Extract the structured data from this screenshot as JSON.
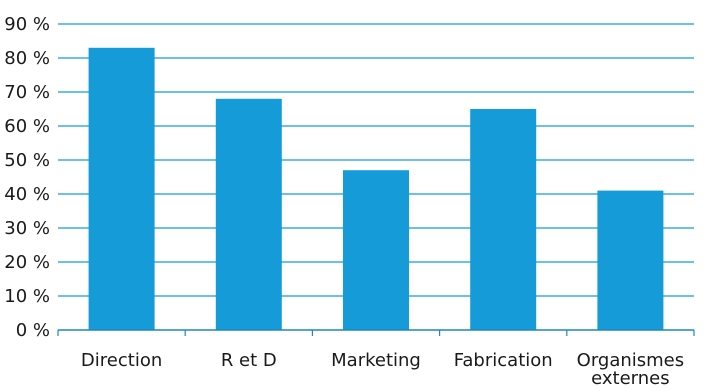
{
  "chart_data": {
    "type": "bar",
    "title": "",
    "xlabel": "",
    "ylabel": "",
    "categories": [
      [
        "Direction"
      ],
      [
        "R et D"
      ],
      [
        "Marketing"
      ],
      [
        "Fabrication"
      ],
      [
        "Organismes",
        "externes"
      ]
    ],
    "values": [
      83,
      68,
      47,
      65,
      41
    ],
    "ylim": [
      0,
      90
    ],
    "yticks": [
      0,
      10,
      20,
      30,
      40,
      50,
      60,
      70,
      80,
      90
    ],
    "ytick_labels": [
      "0 %",
      "10 %",
      "20 %",
      "30 %",
      "40 %",
      "50 %",
      "60 %",
      "70 %",
      "80 %",
      "90 %"
    ],
    "grid": "horizontal",
    "legend": "none",
    "colors": {
      "bar": "#159cd8",
      "grid": "#159cd8",
      "axis": "#1f86c1"
    }
  }
}
